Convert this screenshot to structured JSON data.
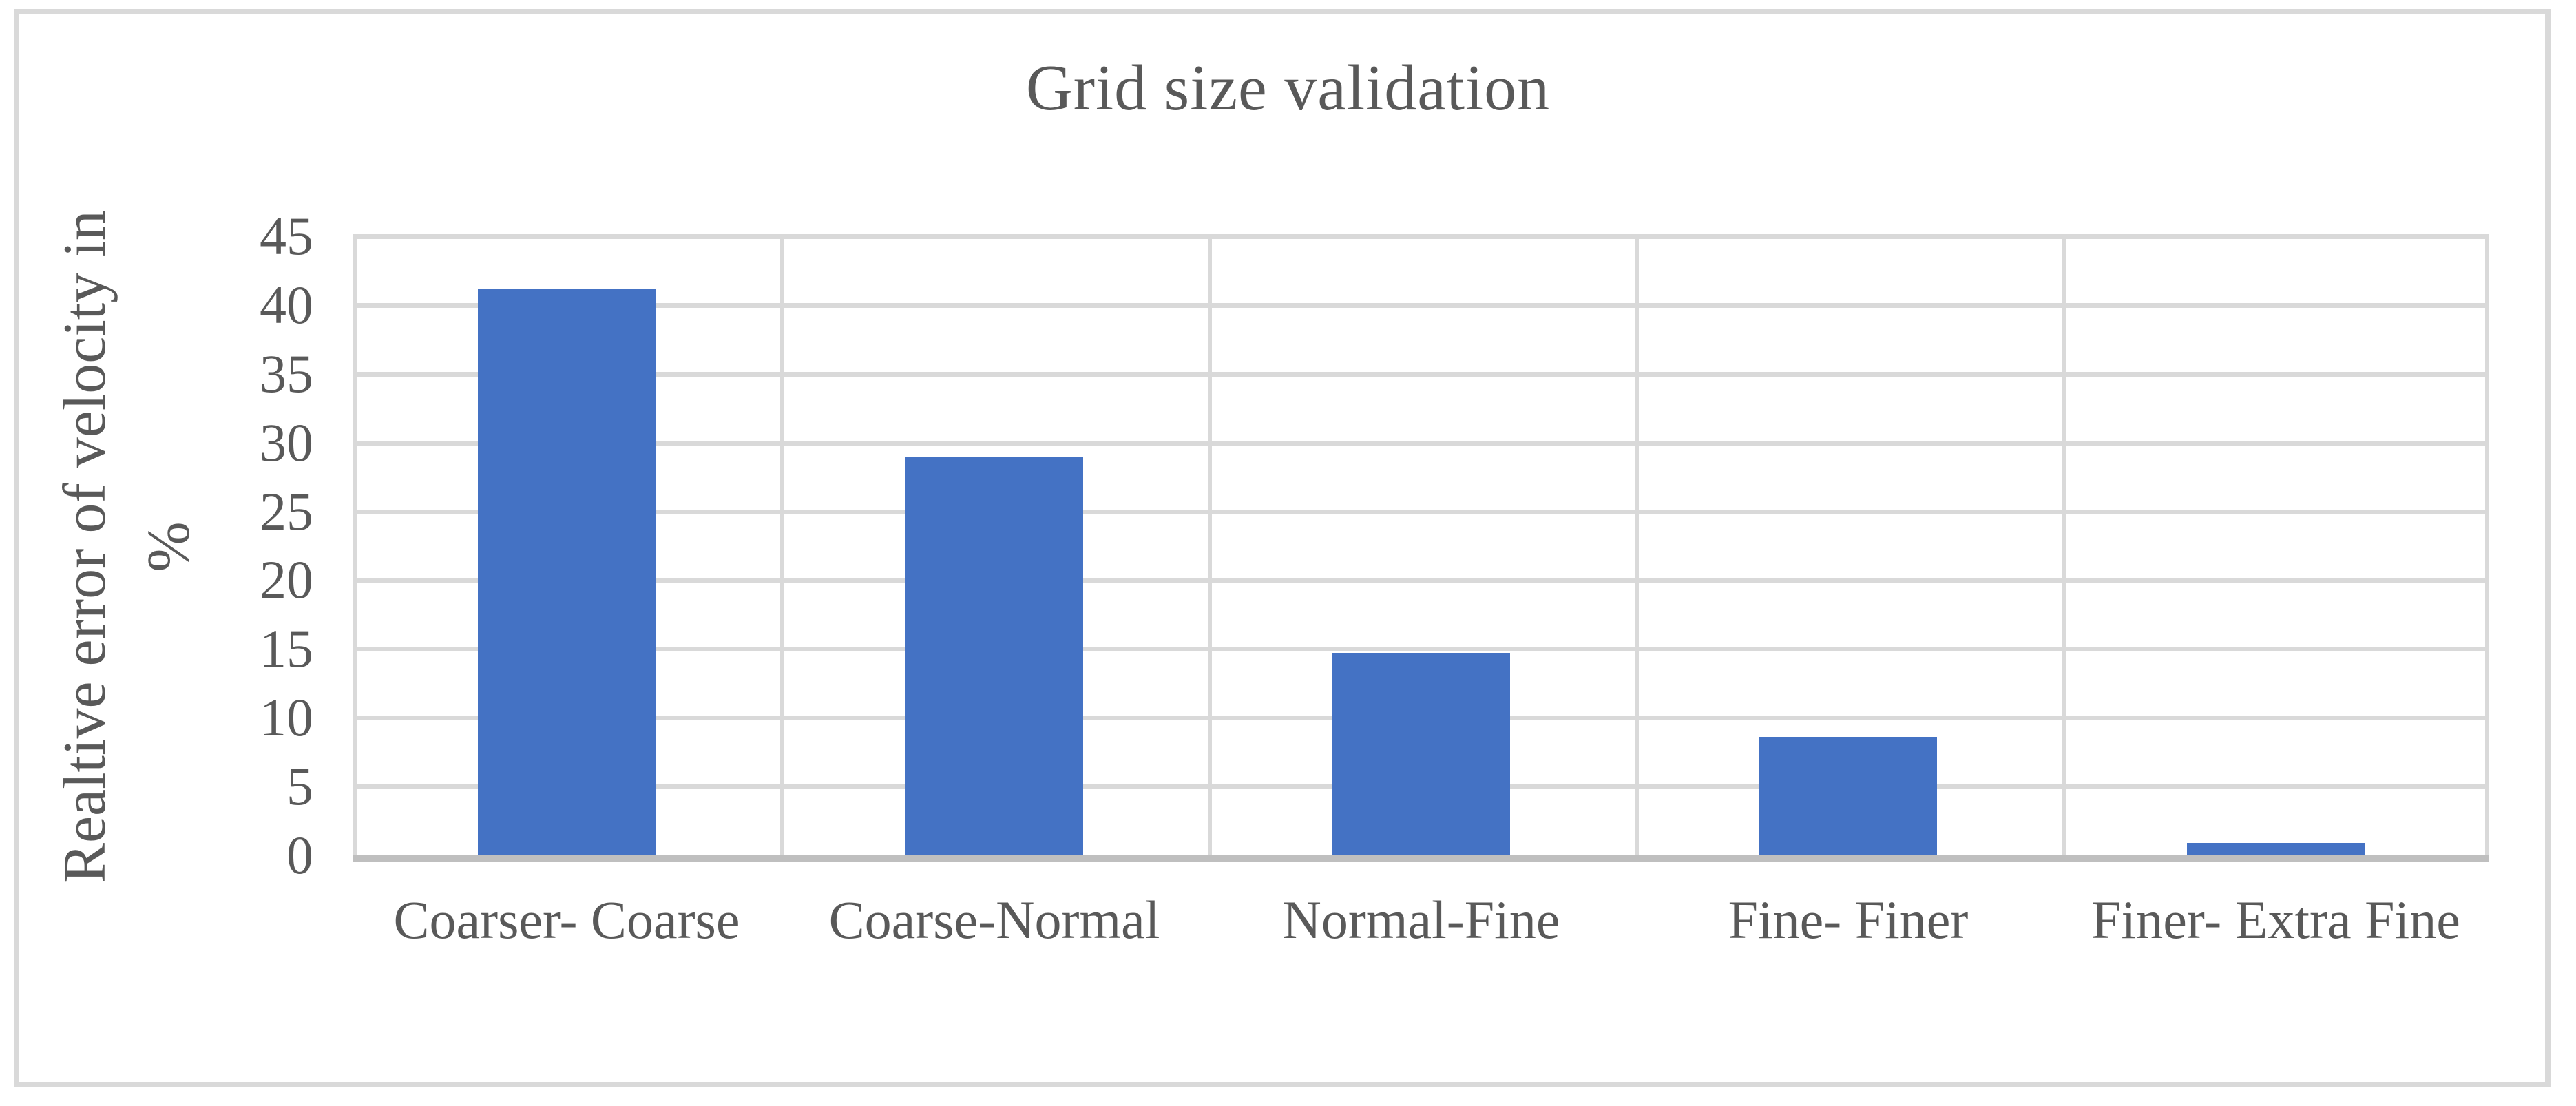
{
  "chart": {
    "title": "Grid size validation",
    "y_axis_title_line1": "Realtive error of velocity in",
    "y_axis_title_line2": "%"
  },
  "chart_data": {
    "type": "bar",
    "title": "Grid size validation",
    "categories": [
      "Coarser- Coarse",
      "Coarse-Normal",
      "Normal-Fine",
      "Fine- Finer",
      "Finer- Extra Fine"
    ],
    "values": [
      41.2,
      29,
      14.7,
      8.6,
      0.9
    ],
    "xlabel": "",
    "ylabel": "Realtive error of velocity in %",
    "ylim": [
      0,
      45
    ],
    "ytick_step": 5,
    "yticks": [
      0,
      5,
      10,
      15,
      20,
      25,
      30,
      35,
      40,
      45
    ],
    "grid": true,
    "legend_position": "none",
    "colors": {
      "bar": "#4472c4",
      "gridline": "#d9d9d9",
      "axis_baseline": "#bfbfbf",
      "text": "#595959",
      "chart_border": "#d9d9d9"
    }
  }
}
